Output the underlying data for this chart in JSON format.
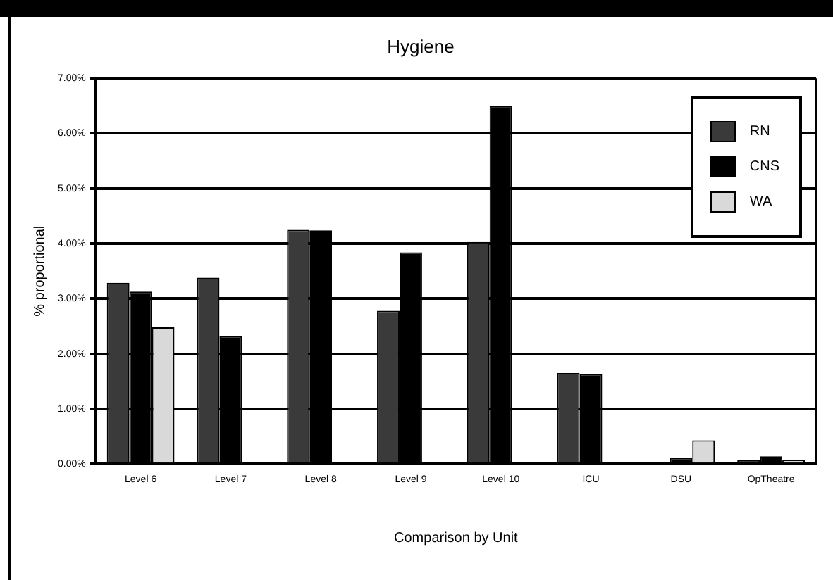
{
  "chart_data": {
    "type": "bar",
    "title": "Hygiene",
    "xlabel": "Comparison by Unit",
    "ylabel": "% proportional",
    "categories": [
      "Level 6",
      "Level 7",
      "Level 8",
      "Level 9",
      "Level 10",
      "ICU",
      "DSU",
      "OpTheatre"
    ],
    "series": [
      {
        "name": "RN",
        "color": "#3a3a3a",
        "values": [
          3.29,
          3.38,
          4.25,
          2.78,
          4.03,
          1.65,
          0,
          0.08
        ]
      },
      {
        "name": "CNS",
        "color": "#000000",
        "values": [
          3.13,
          2.32,
          4.24,
          3.84,
          6.5,
          1.63,
          0.11,
          0.14
        ]
      },
      {
        "name": "WA",
        "color": "#d9d9d9",
        "values": [
          2.48,
          0,
          0,
          0,
          0,
          0,
          0.43,
          0.08
        ]
      }
    ],
    "ylim": [
      0,
      7
    ],
    "yticks": [
      {
        "value": 0,
        "label": "0.00%"
      },
      {
        "value": 1,
        "label": "1.00%"
      },
      {
        "value": 2,
        "label": "2.00%"
      },
      {
        "value": 3,
        "label": "3.00%"
      },
      {
        "value": 4,
        "label": "4.00%"
      },
      {
        "value": 5,
        "label": "5.00%"
      },
      {
        "value": 6,
        "label": "6.00%"
      },
      {
        "value": 7,
        "label": "7.00%"
      }
    ],
    "grid": "y",
    "legend": "top right"
  }
}
